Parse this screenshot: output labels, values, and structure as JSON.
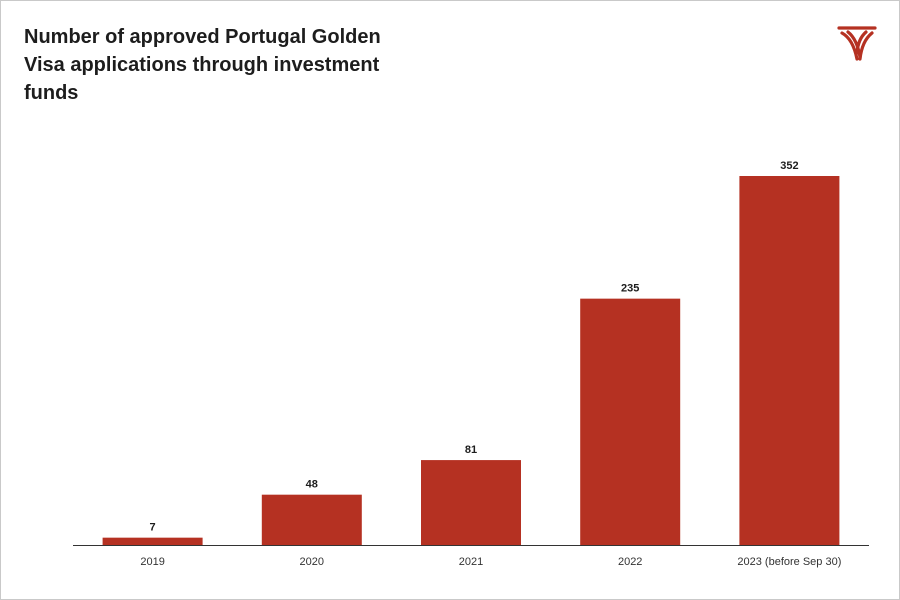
{
  "colors": {
    "accent": "#b53122",
    "text": "#1d1d1d",
    "baseline": "#333333"
  },
  "logo": {
    "icon": "brand-logo-icon"
  },
  "chart_data": {
    "type": "bar",
    "title": "Number of approved Portugal Golden Visa applications through investment funds",
    "xlabel": "",
    "ylabel": "",
    "categories": [
      "2019",
      "2020",
      "2021",
      "2022",
      "2023 (before Sep 30)"
    ],
    "values": [
      7,
      48,
      81,
      235,
      352
    ],
    "value_labels": [
      "7",
      "48",
      "81",
      "235",
      "352"
    ],
    "ylim": [
      0,
      370
    ],
    "grid": false,
    "legend": "none",
    "bar_color": "#b53122"
  }
}
